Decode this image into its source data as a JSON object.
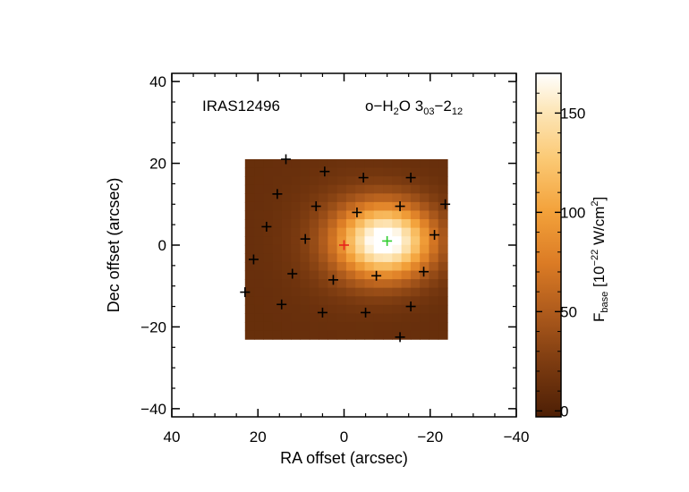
{
  "chart_data": {
    "type": "heatmap",
    "source_label": "IRAS12496",
    "line_label": {
      "base": "o−H",
      "sub1": "2",
      "mid": "O 3",
      "sub2": "03",
      "dash": "−2",
      "sub3": "12"
    },
    "xlabel": "RA offset (arcsec)",
    "ylabel": "Dec offset (arcsec)",
    "xlim": [
      40,
      -40
    ],
    "ylim": [
      -42,
      42
    ],
    "xticks": [
      "40",
      "20",
      "0",
      "−20",
      "−40"
    ],
    "yticks": [
      "40",
      "20",
      "0",
      "−20",
      "−40"
    ],
    "xtick_values": [
      40,
      20,
      0,
      -20,
      -40
    ],
    "ytick_values": [
      40,
      20,
      0,
      -20,
      -40
    ],
    "map_extent": {
      "ra": [
        23,
        -24
      ],
      "dec": [
        -23,
        21
      ]
    },
    "colorbar": {
      "label_main": "F",
      "label_sub": "base",
      "label_units": " [10",
      "label_exp": "−22",
      "label_units2": " W/cm",
      "label_exp2": "2",
      "label_close": "]",
      "range": [
        -3,
        170
      ],
      "ticks": [
        "0",
        "50",
        "100",
        "150"
      ],
      "tick_values": [
        0,
        50,
        100,
        150
      ]
    },
    "source": {
      "ra": 0,
      "dec": 0,
      "peak_flux": 168,
      "background": 12
    },
    "emission_peak": {
      "ra": -10,
      "dec": 1
    },
    "detector_positions": [
      [
        13.5,
        21
      ],
      [
        4.5,
        18
      ],
      [
        -4.5,
        16.5
      ],
      [
        -15.5,
        16.5
      ],
      [
        15.5,
        12.5
      ],
      [
        6.5,
        9.5
      ],
      [
        -13,
        9.5
      ],
      [
        -23.5,
        10
      ],
      [
        -3,
        8
      ],
      [
        18,
        4.5
      ],
      [
        9,
        1.5
      ],
      [
        -21,
        2.5
      ],
      [
        21,
        -3.5
      ],
      [
        12,
        -7
      ],
      [
        -7.5,
        -7.5
      ],
      [
        -18.5,
        -6.5
      ],
      [
        23,
        -11.5
      ],
      [
        2.5,
        -8.5
      ],
      [
        14.5,
        -14.5
      ],
      [
        -15.5,
        -15
      ],
      [
        5,
        -16.5
      ],
      [
        -5,
        -16.5
      ],
      [
        -13,
        -22.5
      ]
    ],
    "colors": {
      "source_marker": "#e8231c",
      "peak_marker": "#2ecc2e",
      "detector_marker": "#000000"
    }
  }
}
